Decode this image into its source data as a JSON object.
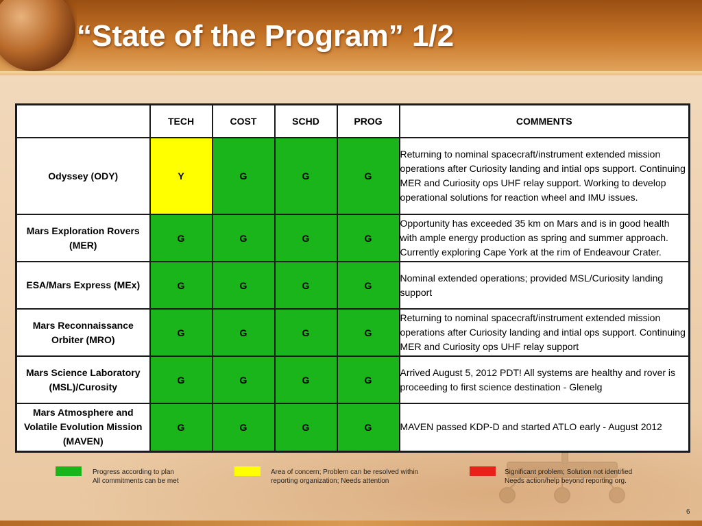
{
  "slide": {
    "title": "“State of the Program” 1/2",
    "page_number": "6"
  },
  "table": {
    "headers": [
      "",
      "TECH",
      "COST",
      "SCHD",
      "PROG",
      "COMMENTS"
    ],
    "rows": [
      {
        "name": "Odyssey (ODY)",
        "tech": "Y",
        "cost": "G",
        "schd": "G",
        "prog": "G",
        "comment": "Returning to nominal spacecraft/instrument extended mission operations after Curiosity landing and intial ops support. Continuing MER and Curiosity ops UHF relay support. Working to develop operational solutions for reaction wheel and IMU issues."
      },
      {
        "name": "Mars Exploration Rovers (MER)",
        "tech": "G",
        "cost": "G",
        "schd": "G",
        "prog": "G",
        "comment": "Opportunity has exceeded 35 km on Mars and is in good health with ample energy production as spring and summer approach. Currently exploring Cape York at the rim of Endeavour Crater."
      },
      {
        "name": "ESA/Mars Express (MEx)",
        "tech": "G",
        "cost": "G",
        "schd": "G",
        "prog": "G",
        "comment": "Nominal extended operations; provided MSL/Curiosity landing support"
      },
      {
        "name": "Mars Reconnaissance Orbiter (MRO)",
        "tech": "G",
        "cost": "G",
        "schd": "G",
        "prog": "G",
        "comment": "Returning to nominal spacecraft/instrument extended mission operations after Curiosity landing and intial ops support. Continuing MER and Curiosity ops UHF relay support"
      },
      {
        "name": "Mars Science Laboratory (MSL)/Curosity",
        "tech": "G",
        "cost": "G",
        "schd": "G",
        "prog": "G",
        "comment": "Arrived August 5, 2012 PDT!  All systems are healthy and rover is proceeding to first science destination - Glenelg"
      },
      {
        "name": "Mars Atmosphere and Volatile Evolution Mission (MAVEN)",
        "tech": "G",
        "cost": "G",
        "schd": "G",
        "prog": "G",
        "comment": "MAVEN passed KDP-D and started ATLO early - August 2012"
      }
    ]
  },
  "legend": [
    {
      "color": "#19b51a",
      "line1": "Progress according to plan",
      "line2": "All commitments can be met"
    },
    {
      "color": "#ffff00",
      "line1": "Area of concern; Problem can be resolved within",
      "line2": "reporting organization; Needs attention"
    },
    {
      "color": "#e8221a",
      "line1": "Significant problem; Solution not identified",
      "line2": "Needs action/help beyond reporting org."
    }
  ],
  "colors": {
    "green": "#19b51a",
    "yellow": "#ffff00",
    "red": "#e8221a"
  },
  "icons": {
    "planet": "mars-planet-icon",
    "rover": "mars-rover-illustration"
  }
}
